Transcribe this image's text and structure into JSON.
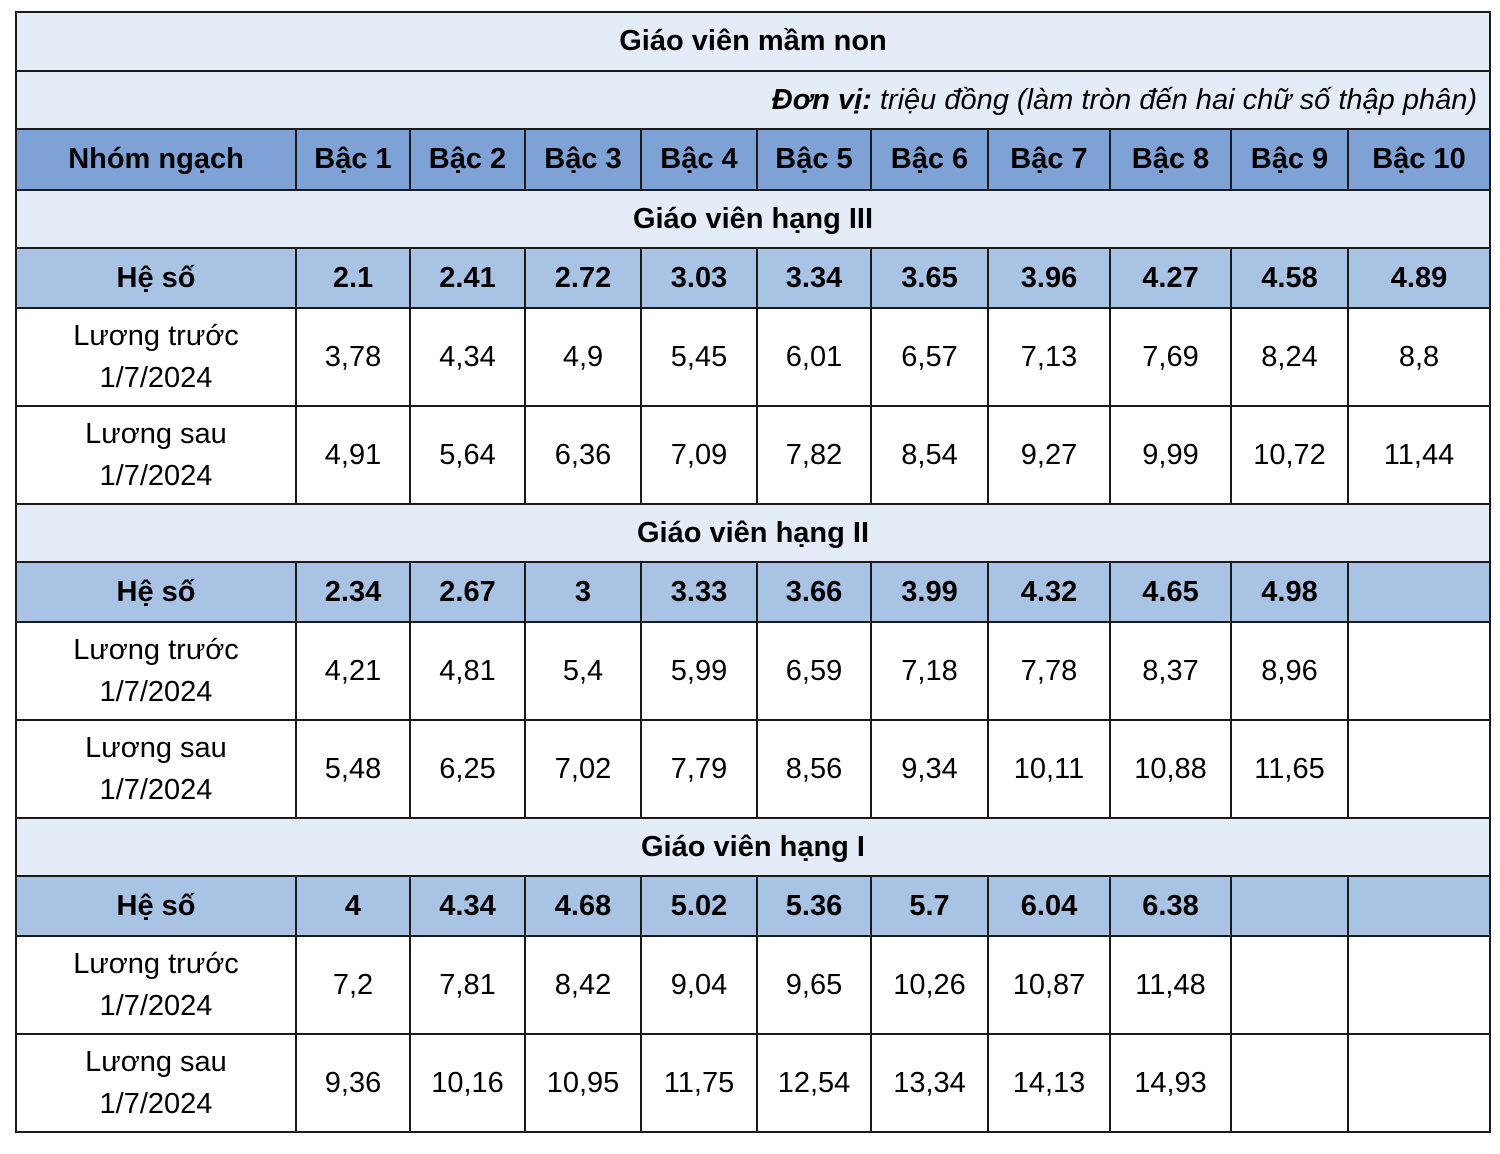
{
  "title": "Giáo viên mầm non",
  "unit": {
    "label": "Đơn vị:",
    "text": " triệu đồng (làm tròn đến hai chữ số thập phân)"
  },
  "header": {
    "first_col": "Nhóm ngạch",
    "steps": [
      "Bậc 1",
      "Bậc 2",
      "Bậc 3",
      "Bậc 4",
      "Bậc 5",
      "Bậc 6",
      "Bậc 7",
      "Bậc 8",
      "Bậc 9",
      "Bậc 10"
    ]
  },
  "groups": [
    {
      "name": "Giáo viên hạng III",
      "coef_label": "Hệ số",
      "coef": [
        "2.1",
        "2.41",
        "2.72",
        "3.03",
        "3.34",
        "3.65",
        "3.96",
        "4.27",
        "4.58",
        "4.89"
      ],
      "before_label": [
        "Lương trước",
        "1/7/2024"
      ],
      "before": [
        "3,78",
        "4,34",
        "4,9",
        "5,45",
        "6,01",
        "6,57",
        "7,13",
        "7,69",
        "8,24",
        "8,8"
      ],
      "after_label": [
        "Lương sau",
        "1/7/2024"
      ],
      "after": [
        "4,91",
        "5,64",
        "6,36",
        "7,09",
        "7,82",
        "8,54",
        "9,27",
        "9,99",
        "10,72",
        "11,44"
      ]
    },
    {
      "name": "Giáo viên hạng II",
      "coef_label": "Hệ số",
      "coef": [
        "2.34",
        "2.67",
        "3",
        "3.33",
        "3.66",
        "3.99",
        "4.32",
        "4.65",
        "4.98",
        ""
      ],
      "before_label": [
        "Lương trước",
        "1/7/2024"
      ],
      "before": [
        "4,21",
        "4,81",
        "5,4",
        "5,99",
        "6,59",
        "7,18",
        "7,78",
        "8,37",
        "8,96",
        ""
      ],
      "after_label": [
        "Lương sau",
        "1/7/2024"
      ],
      "after": [
        "5,48",
        "6,25",
        "7,02",
        "7,79",
        "8,56",
        "9,34",
        "10,11",
        "10,88",
        "11,65",
        ""
      ]
    },
    {
      "name": "Giáo viên hạng I",
      "coef_label": "Hệ số",
      "coef": [
        "4",
        "4.34",
        "4.68",
        "5.02",
        "5.36",
        "5.7",
        "6.04",
        "6.38",
        "",
        ""
      ],
      "before_label": [
        "Lương trước",
        "1/7/2024"
      ],
      "before": [
        "7,2",
        "7,81",
        "8,42",
        "9,04",
        "9,65",
        "10,26",
        "10,87",
        "11,48",
        "",
        ""
      ],
      "after_label": [
        "Lương sau",
        "1/7/2024"
      ],
      "after": [
        "9,36",
        "10,16",
        "10,95",
        "11,75",
        "12,54",
        "13,34",
        "14,13",
        "14,93",
        "",
        ""
      ]
    }
  ]
}
